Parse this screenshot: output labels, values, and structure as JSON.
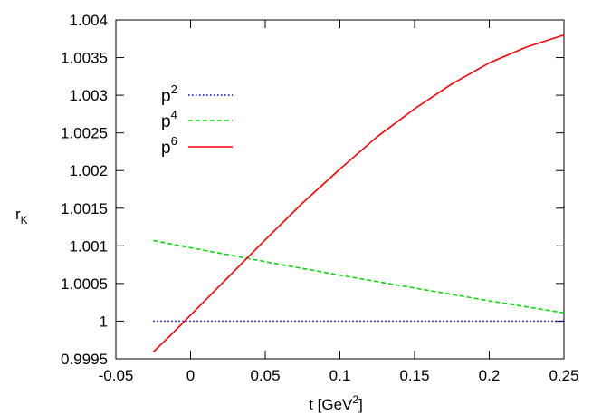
{
  "chart_data": {
    "type": "line",
    "title": "",
    "xlabel": {
      "base": "t [GeV",
      "sup": "2",
      "tail": "]"
    },
    "ylabel": {
      "base": "r",
      "sub": "K"
    },
    "xlim": [
      -0.05,
      0.25
    ],
    "ylim": [
      0.9995,
      1.004
    ],
    "x_ticks": [
      -0.05,
      0,
      0.05,
      0.1,
      0.15,
      0.2,
      0.25
    ],
    "x_tick_labels": [
      "-0.05",
      "0",
      "0.05",
      "0.1",
      "0.15",
      "0.2",
      "0.25"
    ],
    "y_ticks": [
      0.9995,
      1,
      1.0005,
      1.001,
      1.0015,
      1.002,
      1.0025,
      1.003,
      1.0035,
      1.004
    ],
    "y_tick_labels": [
      "0.9995",
      "1",
      "1.0005",
      "1.001",
      "1.0015",
      "1.002",
      "1.0025",
      "1.003",
      "1.0035",
      "1.004"
    ],
    "grid": false,
    "legend_position": "top-left",
    "series": [
      {
        "name": "p2",
        "legend_base": "p",
        "legend_sup": "2",
        "color": "#0000ff",
        "style": "dotted",
        "x": [
          -0.025,
          0.25
        ],
        "y": [
          1.0,
          1.0
        ]
      },
      {
        "name": "p4",
        "legend_base": "p",
        "legend_sup": "4",
        "color": "#00dd00",
        "style": "dashed",
        "x": [
          -0.025,
          0.0,
          0.05,
          0.1,
          0.15,
          0.2,
          0.25
        ],
        "y": [
          1.00107,
          1.000975,
          1.00079,
          1.00061,
          1.00044,
          1.00027,
          1.00011
        ]
      },
      {
        "name": "p6",
        "legend_base": "p",
        "legend_sup": "6",
        "color": "#ff0000",
        "style": "solid",
        "x": [
          -0.025,
          -0.0125,
          0.0,
          0.025,
          0.05,
          0.075,
          0.1,
          0.125,
          0.15,
          0.175,
          0.2,
          0.225,
          0.25
        ],
        "y": [
          0.99959,
          0.99983,
          1.00008,
          1.00058,
          1.00108,
          1.00157,
          1.00202,
          1.00245,
          1.00282,
          1.00315,
          1.00343,
          1.00364,
          1.0038
        ]
      }
    ]
  }
}
